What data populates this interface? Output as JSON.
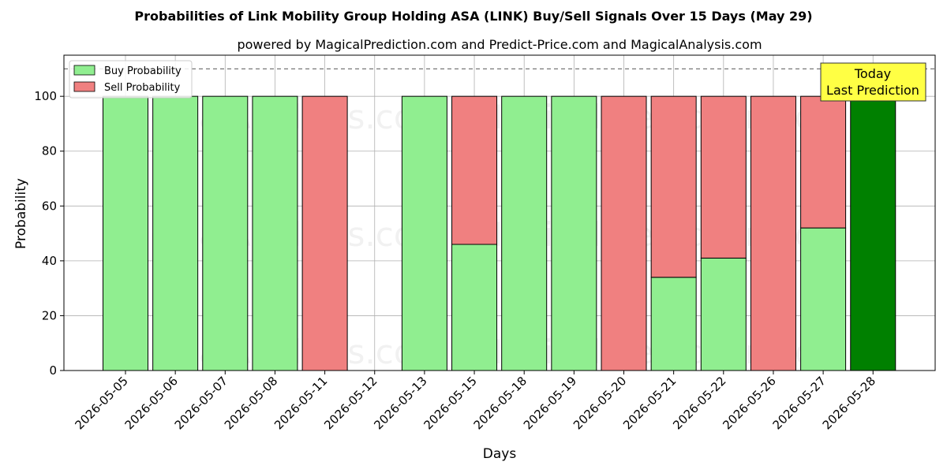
{
  "chart_data": {
    "type": "bar",
    "stacked": true,
    "title": "Probabilities of Link Mobility Group Holding ASA (LINK) Buy/Sell Signals Over 15 Days (May 29)",
    "subtitle": "powered by MagicalPrediction.com and Predict-Price.com and MagicalAnalysis.com",
    "xlabel": "Days",
    "ylabel": "Probability",
    "ylim": [
      0,
      115
    ],
    "yticks": [
      0,
      20,
      40,
      60,
      80,
      100
    ],
    "grid": true,
    "legend_position": "top-left",
    "reference_line": 110,
    "categories": [
      "2026-05-05",
      "2026-05-06",
      "2026-05-07",
      "2026-05-08",
      "2026-05-11",
      "2026-05-12",
      "2026-05-13",
      "2026-05-15",
      "2026-05-18",
      "2026-05-19",
      "2026-05-20",
      "2026-05-21",
      "2026-05-22",
      "2026-05-26",
      "2026-05-27",
      "2026-05-28"
    ],
    "series": [
      {
        "name": "Buy Probability",
        "color": "#90ee90",
        "values": [
          100,
          100,
          100,
          100,
          0,
          0,
          100,
          46,
          100,
          100,
          0,
          34,
          41,
          0,
          52,
          100
        ]
      },
      {
        "name": "Sell Probability",
        "color": "#f08080",
        "values": [
          0,
          0,
          0,
          0,
          100,
          0,
          0,
          54,
          0,
          0,
          100,
          66,
          59,
          100,
          48,
          0
        ]
      }
    ],
    "highlight": {
      "category": "2026-05-28",
      "color": "#008000"
    },
    "annotation": {
      "lines": [
        "Today",
        "Last Prediction"
      ],
      "background": "#ffff44"
    },
    "watermarks": [
      "MagicalAnalysis.com",
      "MagicalPrediction.com"
    ]
  }
}
